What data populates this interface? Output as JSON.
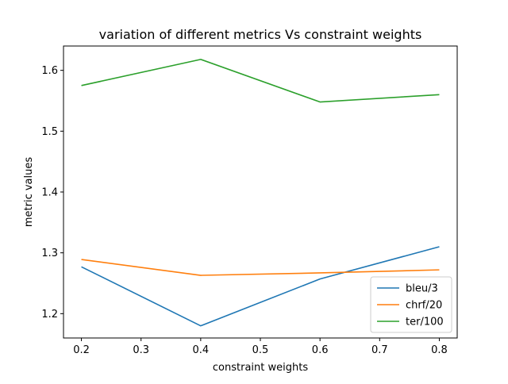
{
  "chart_data": {
    "type": "line",
    "title": "variation of different metrics Vs constraint weights",
    "xlabel": "constraint weights",
    "ylabel": "metric values",
    "x": [
      0.2,
      0.4,
      0.6,
      0.8
    ],
    "xlim": [
      0.17,
      0.83
    ],
    "ylim": [
      1.16,
      1.64
    ],
    "xticks": [
      "0.2",
      "0.3",
      "0.4",
      "0.5",
      "0.6",
      "0.7",
      "0.8"
    ],
    "yticks": [
      "1.2",
      "1.3",
      "1.4",
      "1.5",
      "1.6"
    ],
    "grid": false,
    "legend_position": "bottom-right",
    "series": [
      {
        "name": "bleu/3",
        "color": "#1f77b4",
        "values": [
          1.277,
          1.18,
          1.257,
          1.31
        ]
      },
      {
        "name": "chrf/20",
        "color": "#ff7f0e",
        "values": [
          1.289,
          1.263,
          1.267,
          1.272
        ]
      },
      {
        "name": "ter/100",
        "color": "#2ca02c",
        "values": [
          1.575,
          1.618,
          1.548,
          1.56
        ]
      }
    ]
  }
}
